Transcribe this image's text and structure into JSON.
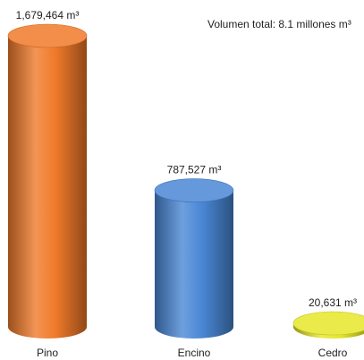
{
  "chart_data": {
    "type": "bar",
    "style": "3d-cylinder",
    "annotation": "Volumen total: 8.1 millones m³",
    "categories": [
      "Pino",
      "Encino",
      "Cedro"
    ],
    "values": [
      1679464,
      787527,
      20631
    ],
    "value_labels": [
      "1,679,464 m³",
      "787,527 m³",
      "20,631 m³"
    ],
    "colors": [
      "#f07a2a",
      "#4a87d6",
      "#e6e62a"
    ],
    "ylim": [
      0,
      1679464
    ],
    "grid": false,
    "legend": false
  }
}
